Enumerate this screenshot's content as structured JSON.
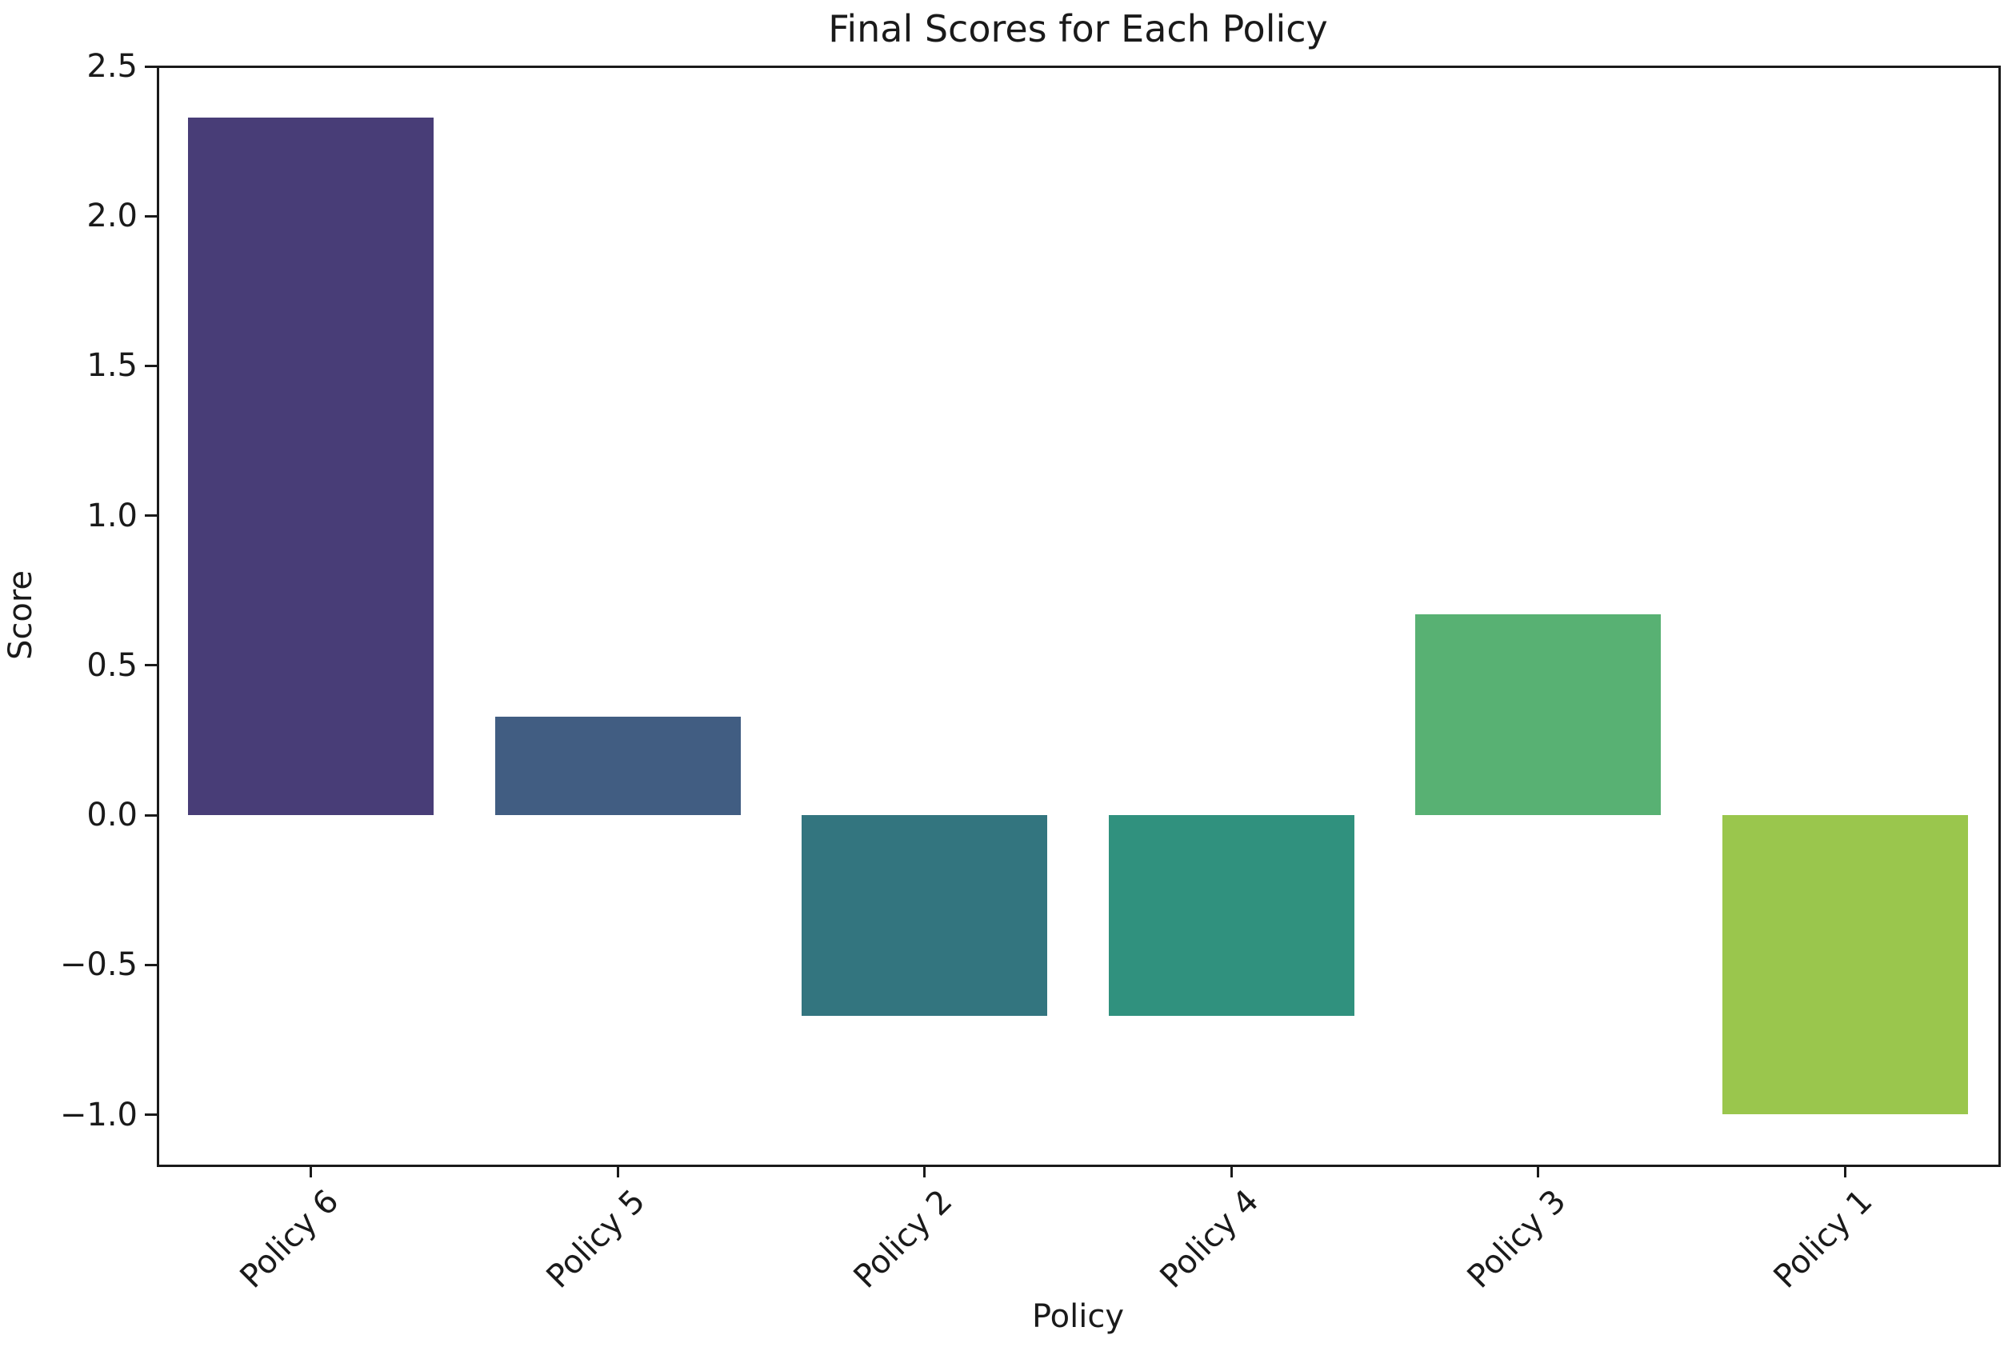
{
  "figure": {
    "background": "#ffffff"
  },
  "chart_data": {
    "type": "bar",
    "title": "Final Scores for Each Policy",
    "xlabel": "Policy",
    "ylabel": "Score",
    "categories": [
      "Policy 6",
      "Policy 5",
      "Policy 2",
      "Policy 4",
      "Policy 3",
      "Policy 1"
    ],
    "values": [
      2.33,
      0.33,
      -0.67,
      -0.67,
      0.67,
      -1.0
    ],
    "bar_colors": [
      "#483d77",
      "#415d82",
      "#33757f",
      "#30917e",
      "#58b173",
      "#9ac64d"
    ],
    "ylim": [
      -1.167,
      2.5
    ],
    "yticks": [
      2.5,
      2.0,
      1.5,
      1.0,
      0.5,
      0.0,
      -0.5,
      -1.0
    ],
    "ytick_labels": [
      "2.5",
      "2.0",
      "1.5",
      "1.0",
      "0.5",
      "0.0",
      "−0.5",
      "−1.0"
    ],
    "xtick_rotation_deg": 45,
    "bar_width_fraction": 0.8,
    "grid": false,
    "legend": "none",
    "axis_color": "#1a1a1a",
    "text_color": "#1a1a1a"
  }
}
